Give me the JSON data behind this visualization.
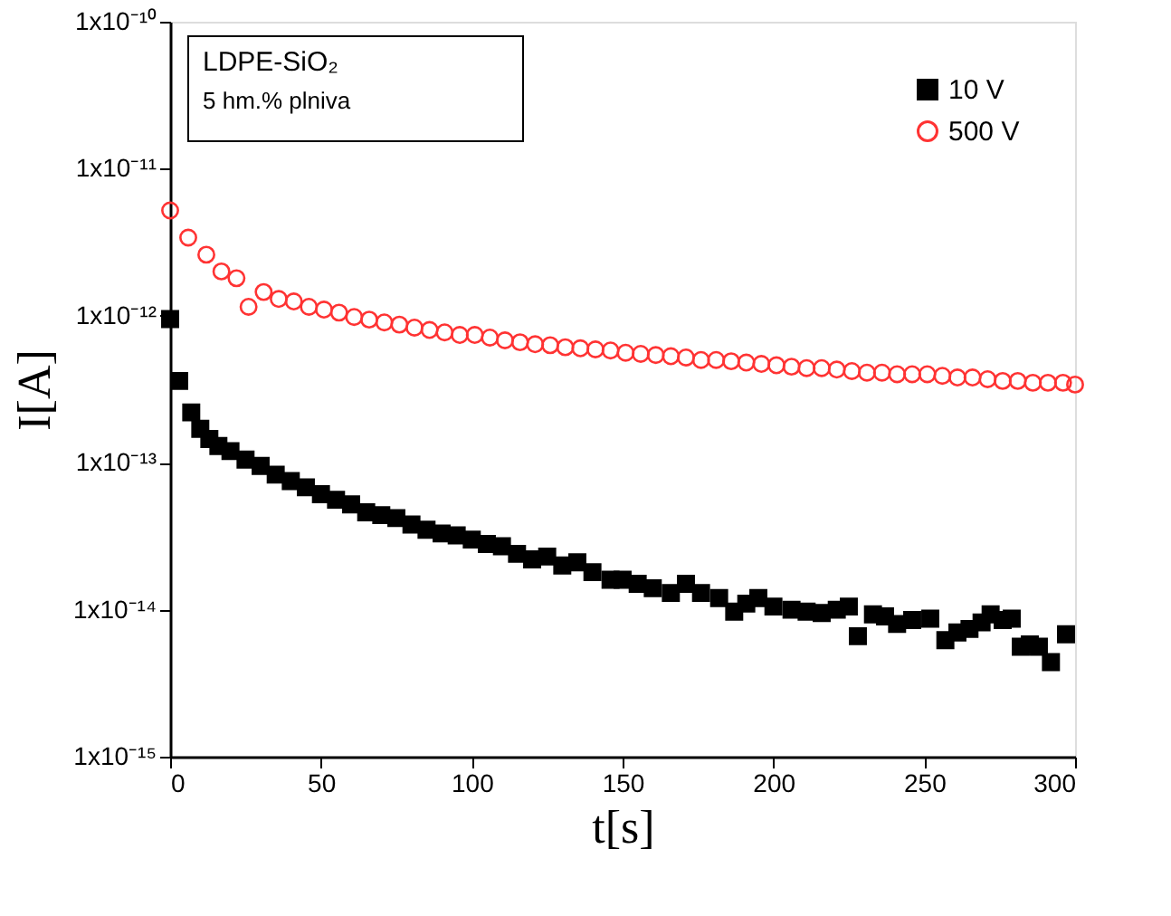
{
  "chart_data": {
    "type": "scatter",
    "xlabel": "t[s]",
    "ylabel": "I[A]",
    "log": "y",
    "xlim": [
      0,
      300
    ],
    "xticks": [
      0,
      50,
      100,
      150,
      200,
      250,
      300
    ],
    "ylim": [
      1e-15,
      1e-10
    ],
    "yticks": [
      {
        "value": 1e-15,
        "label": "1x10⁻¹⁵"
      },
      {
        "value": 1e-14,
        "label": "1x10⁻¹⁴"
      },
      {
        "value": 1e-13,
        "label": "1x10⁻¹³"
      },
      {
        "value": 1e-12,
        "label": "1x10⁻¹²"
      },
      {
        "value": 1e-11,
        "label": "1x10⁻¹¹"
      },
      {
        "value": 1e-10,
        "label": "1x10⁻¹⁰"
      }
    ],
    "grid": false,
    "legend": "top right",
    "annotations": [
      "LDPE-SiO₂",
      "5 hm.% plniva"
    ],
    "series": [
      {
        "name": "10 V",
        "color": "#000000",
        "marker": "square",
        "x": [
          0,
          3,
          7,
          10,
          13,
          16,
          20,
          25,
          30,
          35,
          40,
          45,
          50,
          55,
          60,
          65,
          70,
          75,
          80,
          85,
          90,
          95,
          100,
          105,
          110,
          115,
          120,
          125,
          130,
          135,
          140,
          146,
          150,
          155,
          160,
          166,
          171,
          176,
          182,
          187,
          191,
          195,
          200,
          206,
          211,
          216,
          221,
          225,
          228,
          233,
          237,
          241,
          246,
          252,
          257,
          261,
          265,
          269,
          272,
          276,
          279,
          282,
          285,
          288,
          292,
          297
        ],
        "values": [
          9.5e-13,
          3.6e-13,
          2.2e-13,
          1.7e-13,
          1.45e-13,
          1.3e-13,
          1.2e-13,
          1.05e-13,
          9.5e-14,
          8.3e-14,
          7.5e-14,
          6.8e-14,
          6.1e-14,
          5.6e-14,
          5.2e-14,
          4.6e-14,
          4.4e-14,
          4.2e-14,
          3.8e-14,
          3.5e-14,
          3.3e-14,
          3.2e-14,
          3e-14,
          2.8e-14,
          2.7e-14,
          2.4e-14,
          2.2e-14,
          2.3e-14,
          2e-14,
          2.1e-14,
          1.8e-14,
          1.6e-14,
          1.6e-14,
          1.5e-14,
          1.4e-14,
          1.3e-14,
          1.5e-14,
          1.3e-14,
          1.2e-14,
          9.7e-15,
          1.1e-14,
          1.2e-14,
          1.05e-14,
          1e-14,
          9.7e-15,
          9.5e-15,
          1e-14,
          1.05e-14,
          6.6e-15,
          9.3e-15,
          9e-15,
          8e-15,
          8.5e-15,
          8.7e-15,
          6.2e-15,
          7e-15,
          7.4e-15,
          8.2e-15,
          9.3e-15,
          8.5e-15,
          8.7e-15,
          5.6e-15,
          5.8e-15,
          5.6e-15,
          4.4e-15,
          6.8e-15
        ]
      },
      {
        "name": "500 V",
        "color": "#ff3333",
        "marker": "circle",
        "x": [
          0,
          6,
          12,
          17,
          22,
          26,
          31,
          36,
          41,
          46,
          51,
          56,
          61,
          66,
          71,
          76,
          81,
          86,
          91,
          96,
          101,
          106,
          111,
          116,
          121,
          126,
          131,
          136,
          141,
          146,
          151,
          156,
          161,
          166,
          171,
          176,
          181,
          186,
          191,
          196,
          201,
          206,
          211,
          216,
          221,
          226,
          231,
          236,
          241,
          246,
          251,
          256,
          261,
          266,
          271,
          276,
          281,
          286,
          291,
          296,
          300
        ],
        "values": [
          5.2e-12,
          3.4e-12,
          2.6e-12,
          2e-12,
          1.8e-12,
          1.15e-12,
          1.45e-12,
          1.3e-12,
          1.25e-12,
          1.15e-12,
          1.1e-12,
          1.05e-12,
          9.8e-13,
          9.4e-13,
          9e-13,
          8.7e-13,
          8.3e-13,
          8e-13,
          7.7e-13,
          7.4e-13,
          7.4e-13,
          7.1e-13,
          6.8e-13,
          6.6e-13,
          6.4e-13,
          6.3e-13,
          6.1e-13,
          6e-13,
          5.9e-13,
          5.8e-13,
          5.6e-13,
          5.5e-13,
          5.4e-13,
          5.3e-13,
          5.2e-13,
          5e-13,
          5e-13,
          4.9e-13,
          4.8e-13,
          4.7e-13,
          4.6e-13,
          4.5e-13,
          4.4e-13,
          4.4e-13,
          4.3e-13,
          4.2e-13,
          4.1e-13,
          4.1e-13,
          4e-13,
          4e-13,
          4e-13,
          3.9e-13,
          3.8e-13,
          3.8e-13,
          3.7e-13,
          3.6e-13,
          3.6e-13,
          3.5e-13,
          3.5e-13,
          3.5e-13,
          3.4e-13
        ]
      }
    ]
  }
}
